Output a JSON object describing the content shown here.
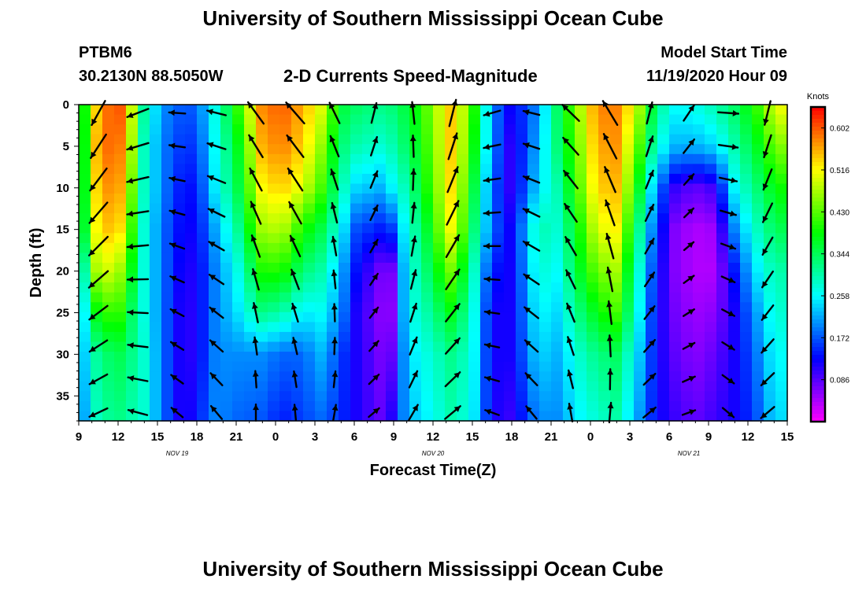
{
  "header": {
    "title": "University of Southern Mississippi Ocean Cube",
    "station_id": "PTBM6",
    "station_coords": "30.2130N 88.5050W",
    "subtitle": "2-D Currents Speed-Magnitude",
    "model_start_label": "Model Start Time",
    "model_start_value": "11/19/2020 Hour 09"
  },
  "footer": {
    "title": "University of Southern Mississippi Ocean Cube"
  },
  "chart_data": {
    "type": "heatmap",
    "title": "2-D Currents Speed-Magnitude",
    "xlabel": "Forecast Time(Z)",
    "ylabel": "Depth (ft)",
    "x_ticks": [
      "9",
      "12",
      "15",
      "18",
      "21",
      "0",
      "3",
      "6",
      "9",
      "12",
      "15",
      "18",
      "21",
      "0",
      "3",
      "6",
      "9",
      "12",
      "15"
    ],
    "x_tick_hours": [
      0,
      3,
      6,
      9,
      12,
      15,
      18,
      21,
      24,
      27,
      30,
      33,
      36,
      39,
      42,
      45,
      48,
      51,
      54
    ],
    "x_range_hours": [
      0,
      54
    ],
    "day_labels": [
      {
        "label": "NOV 19",
        "hour": 7.5
      },
      {
        "label": "NOV 20",
        "hour": 27
      },
      {
        "label": "NOV 21",
        "hour": 46.5
      }
    ],
    "y_ticks": [
      "0",
      "5",
      "10",
      "15",
      "20",
      "25",
      "30",
      "35"
    ],
    "y_range": [
      0,
      38
    ],
    "y_inverted": true,
    "colorbar": {
      "unit": "Knots",
      "range": [
        0,
        0.645
      ],
      "ticks": [
        "0.602",
        "0.516",
        "0.430",
        "0.344",
        "0.258",
        "0.172",
        "0.086"
      ],
      "tick_values": [
        0.602,
        0.516,
        0.43,
        0.344,
        0.258,
        0.172,
        0.086
      ]
    },
    "speed_columns": [
      {
        "t": 0,
        "v": [
          0.32,
          0.3,
          0.3,
          0.29,
          0.22,
          0.2,
          0.2,
          0.18
        ]
      },
      {
        "t": 1.5,
        "v": [
          0.56,
          0.58,
          0.56,
          0.54,
          0.5,
          0.4,
          0.32,
          0.3
        ]
      },
      {
        "t": 3,
        "v": [
          0.62,
          0.6,
          0.58,
          0.55,
          0.48,
          0.42,
          0.35,
          0.32
        ]
      },
      {
        "t": 4,
        "v": [
          0.5,
          0.48,
          0.45,
          0.42,
          0.38,
          0.34,
          0.32,
          0.3
        ]
      },
      {
        "t": 5,
        "v": [
          0.3,
          0.28,
          0.28,
          0.27,
          0.27,
          0.27,
          0.28,
          0.28
        ]
      },
      {
        "t": 6.5,
        "v": [
          0.2,
          0.19,
          0.19,
          0.18,
          0.18,
          0.18,
          0.18,
          0.18
        ]
      },
      {
        "t": 8,
        "v": [
          0.17,
          0.15,
          0.13,
          0.12,
          0.11,
          0.1,
          0.1,
          0.1
        ]
      },
      {
        "t": 9,
        "v": [
          0.18,
          0.16,
          0.14,
          0.13,
          0.12,
          0.12,
          0.12,
          0.14
        ]
      },
      {
        "t": 10.5,
        "v": [
          0.28,
          0.27,
          0.26,
          0.22,
          0.2,
          0.2,
          0.2,
          0.2
        ]
      },
      {
        "t": 12,
        "v": [
          0.4,
          0.36,
          0.34,
          0.3,
          0.26,
          0.24,
          0.2,
          0.18
        ]
      },
      {
        "t": 14,
        "v": [
          0.58,
          0.56,
          0.52,
          0.47,
          0.4,
          0.32,
          0.2,
          0.17
        ]
      },
      {
        "t": 15.5,
        "v": [
          0.6,
          0.58,
          0.54,
          0.48,
          0.4,
          0.3,
          0.18,
          0.14
        ]
      },
      {
        "t": 17,
        "v": [
          0.56,
          0.54,
          0.5,
          0.4,
          0.33,
          0.25,
          0.18,
          0.16
        ]
      },
      {
        "t": 18.5,
        "v": [
          0.5,
          0.46,
          0.42,
          0.35,
          0.3,
          0.26,
          0.22,
          0.18
        ]
      },
      {
        "t": 20,
        "v": [
          0.36,
          0.33,
          0.3,
          0.26,
          0.22,
          0.2,
          0.16,
          0.15
        ]
      },
      {
        "t": 21,
        "v": [
          0.34,
          0.3,
          0.24,
          0.17,
          0.14,
          0.12,
          0.12,
          0.12
        ]
      },
      {
        "t": 23,
        "v": [
          0.32,
          0.28,
          0.22,
          0.14,
          0.07,
          0.06,
          0.07,
          0.08
        ]
      },
      {
        "t": 24,
        "v": [
          0.33,
          0.3,
          0.26,
          0.16,
          0.07,
          0.06,
          0.08,
          0.12
        ]
      },
      {
        "t": 25,
        "v": [
          0.36,
          0.34,
          0.3,
          0.28,
          0.27,
          0.27,
          0.24,
          0.22
        ]
      },
      {
        "t": 26,
        "v": [
          0.4,
          0.38,
          0.36,
          0.32,
          0.3,
          0.28,
          0.26,
          0.24
        ]
      },
      {
        "t": 28.5,
        "v": [
          0.55,
          0.55,
          0.54,
          0.52,
          0.45,
          0.38,
          0.32,
          0.3
        ]
      },
      {
        "t": 30,
        "v": [
          0.42,
          0.4,
          0.37,
          0.34,
          0.3,
          0.28,
          0.27,
          0.26
        ]
      },
      {
        "t": 31.5,
        "v": [
          0.2,
          0.2,
          0.18,
          0.18,
          0.14,
          0.12,
          0.12,
          0.12
        ]
      },
      {
        "t": 33,
        "v": [
          0.12,
          0.1,
          0.1,
          0.12,
          0.12,
          0.12,
          0.12,
          0.1
        ]
      },
      {
        "t": 35,
        "v": [
          0.2,
          0.22,
          0.24,
          0.3,
          0.28,
          0.26,
          0.24,
          0.2
        ]
      },
      {
        "t": 36.5,
        "v": [
          0.34,
          0.33,
          0.3,
          0.28,
          0.26,
          0.24,
          0.22,
          0.2
        ]
      },
      {
        "t": 38,
        "v": [
          0.46,
          0.44,
          0.42,
          0.38,
          0.36,
          0.32,
          0.28,
          0.25
        ]
      },
      {
        "t": 39.5,
        "v": [
          0.58,
          0.56,
          0.54,
          0.5,
          0.44,
          0.38,
          0.32,
          0.28
        ]
      },
      {
        "t": 41,
        "v": [
          0.58,
          0.57,
          0.55,
          0.52,
          0.47,
          0.42,
          0.34,
          0.3
        ]
      },
      {
        "t": 42.5,
        "v": [
          0.5,
          0.45,
          0.4,
          0.34,
          0.3,
          0.28,
          0.25,
          0.22
        ]
      },
      {
        "t": 44,
        "v": [
          0.32,
          0.28,
          0.2,
          0.16,
          0.14,
          0.13,
          0.13,
          0.13
        ]
      },
      {
        "t": 45.5,
        "v": [
          0.26,
          0.22,
          0.1,
          0.06,
          0.06,
          0.07,
          0.08,
          0.1
        ]
      },
      {
        "t": 47,
        "v": [
          0.27,
          0.22,
          0.08,
          0.04,
          0.04,
          0.05,
          0.06,
          0.08
        ]
      },
      {
        "t": 48.5,
        "v": [
          0.3,
          0.24,
          0.1,
          0.05,
          0.04,
          0.06,
          0.08,
          0.1
        ]
      },
      {
        "t": 50,
        "v": [
          0.34,
          0.3,
          0.26,
          0.2,
          0.14,
          0.12,
          0.12,
          0.12
        ]
      },
      {
        "t": 51.5,
        "v": [
          0.4,
          0.36,
          0.32,
          0.28,
          0.24,
          0.2,
          0.18,
          0.16
        ]
      },
      {
        "t": 53,
        "v": [
          0.5,
          0.44,
          0.38,
          0.34,
          0.3,
          0.28,
          0.26,
          0.24
        ]
      },
      {
        "t": 54,
        "v": [
          0.52,
          0.46,
          0.4,
          0.35,
          0.3,
          0.28,
          0.26,
          0.24
        ]
      }
    ],
    "vector_times": [
      1.5,
      4.5,
      7.5,
      10.5,
      13.5,
      16.5,
      19.5,
      22.5,
      25.5,
      28.5,
      31.5,
      34.5,
      37.5,
      40.5,
      43.5,
      46.5,
      49.5,
      52.5
    ],
    "vector_directions_deg": [
      225,
      265,
      290,
      300,
      340,
      335,
      350,
      30,
      10,
      30,
      270,
      300,
      330,
      345,
      30,
      50,
      110,
      210
    ]
  }
}
